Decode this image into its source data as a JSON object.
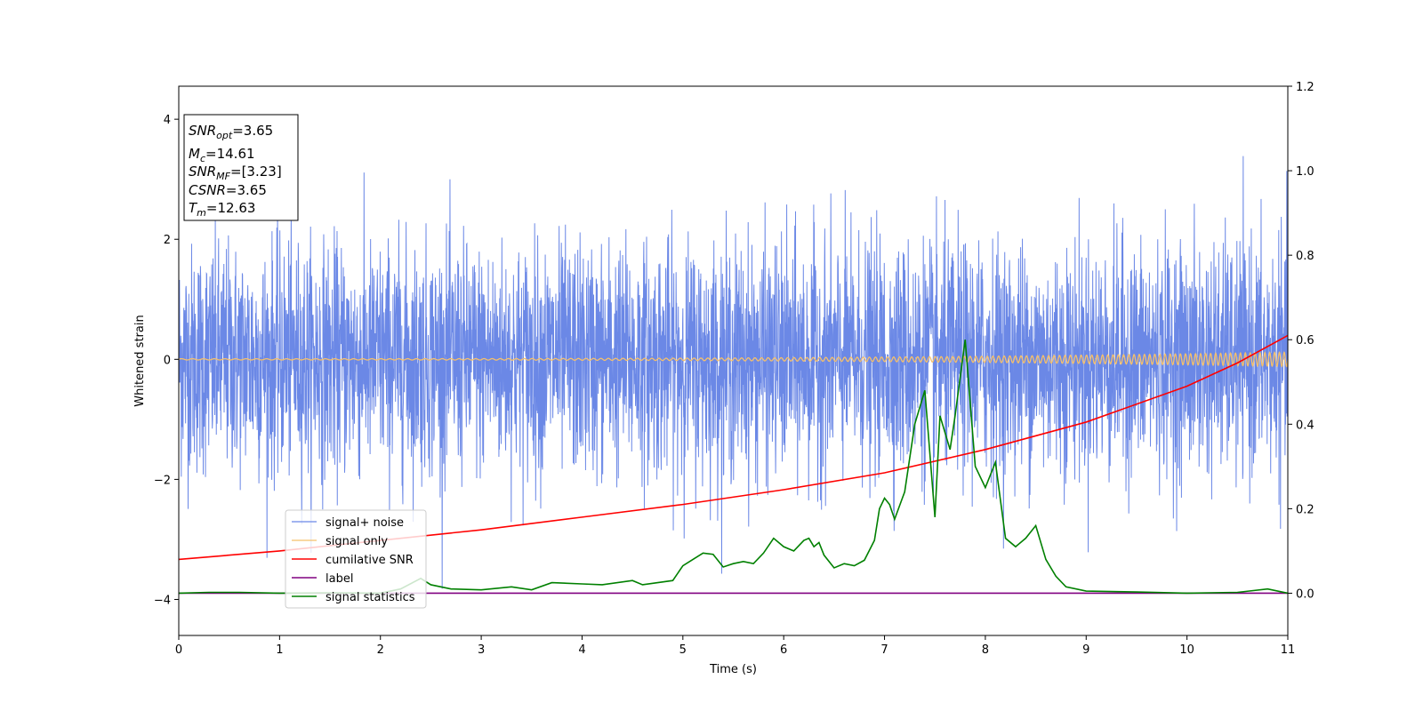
{
  "chart_data": {
    "type": "line",
    "xlabel": "Time (s)",
    "ylabel": "Whitened strain",
    "xlim": [
      0,
      11
    ],
    "ylim": [
      -4.6,
      4.55
    ],
    "y2lim": [
      -0.1,
      1.2
    ],
    "xticks": [
      "0",
      "1",
      "2",
      "3",
      "4",
      "5",
      "6",
      "7",
      "8",
      "9",
      "10",
      "11"
    ],
    "yticks": [
      "4",
      "2",
      "0",
      "−2",
      "−4"
    ],
    "y2ticks": [
      "1.2",
      "1.0",
      "0.8",
      "0.6",
      "0.4",
      "0.2",
      "0.0"
    ],
    "grid": false,
    "legend_position": "lower-left",
    "annotation": {
      "snr_opt": {
        "name": "SNR",
        "sub": "opt",
        "value": "=3.65"
      },
      "mc": {
        "name": "M",
        "sub": "c",
        "value": "=14.61"
      },
      "snr_mf": {
        "name": "SNR",
        "sub": "MF",
        "value": "=[3.23]"
      },
      "csnr": {
        "name": "CSNR",
        "sub": "",
        "value": "=3.65"
      },
      "tm": {
        "name": "T",
        "sub": "m",
        "value": "=12.63"
      }
    },
    "series": [
      {
        "name": "signal+ noise",
        "color": "#6b88e6",
        "axis": "left",
        "description_stats": {
          "band_low": -1.6,
          "band_high": 1.6,
          "max": 4.1,
          "min": -3.95
        }
      },
      {
        "name": "signal only",
        "color": "#f5c06b",
        "axis": "left",
        "amplitude_start": 0.01,
        "amplitude_end": 0.12
      },
      {
        "name": "cumilative SNR",
        "color": "#ff0000",
        "axis": "right",
        "x": [
          0,
          1,
          2,
          3,
          4,
          5,
          6,
          7,
          8,
          9,
          10,
          10.5,
          11
        ],
        "y": [
          0.08,
          0.1,
          0.125,
          0.15,
          0.18,
          0.21,
          0.245,
          0.285,
          0.34,
          0.405,
          0.49,
          0.545,
          0.61
        ]
      },
      {
        "name": "label",
        "color": "#800080",
        "axis": "right",
        "x": [
          0,
          11
        ],
        "y": [
          0,
          0
        ]
      },
      {
        "name": "signal statistics",
        "color": "#008000",
        "axis": "right",
        "x": [
          0,
          0.3,
          0.6,
          1.0,
          1.5,
          2.0,
          2.2,
          2.4,
          2.5,
          2.7,
          3.0,
          3.3,
          3.5,
          3.7,
          4.0,
          4.2,
          4.5,
          4.6,
          4.9,
          5.0,
          5.1,
          5.2,
          5.3,
          5.4,
          5.5,
          5.6,
          5.7,
          5.8,
          5.9,
          6.0,
          6.1,
          6.2,
          6.25,
          6.3,
          6.35,
          6.4,
          6.5,
          6.6,
          6.7,
          6.8,
          6.9,
          6.95,
          7.0,
          7.05,
          7.1,
          7.2,
          7.3,
          7.4,
          7.5,
          7.55,
          7.6,
          7.65,
          7.7,
          7.8,
          7.9,
          8.0,
          8.1,
          8.2,
          8.3,
          8.4,
          8.5,
          8.6,
          8.7,
          8.8,
          9.0,
          9.5,
          10.0,
          10.5,
          10.8,
          11.0
        ],
        "y": [
          0.0,
          0.002,
          0.002,
          0.0,
          0.001,
          0.0,
          0.01,
          0.035,
          0.02,
          0.01,
          0.008,
          0.015,
          0.008,
          0.025,
          0.022,
          0.02,
          0.03,
          0.02,
          0.03,
          0.065,
          0.08,
          0.095,
          0.092,
          0.062,
          0.07,
          0.075,
          0.07,
          0.095,
          0.13,
          0.11,
          0.1,
          0.125,
          0.13,
          0.11,
          0.12,
          0.09,
          0.06,
          0.07,
          0.065,
          0.078,
          0.125,
          0.2,
          0.225,
          0.21,
          0.175,
          0.24,
          0.4,
          0.48,
          0.18,
          0.42,
          0.38,
          0.34,
          0.42,
          0.6,
          0.3,
          0.25,
          0.31,
          0.13,
          0.11,
          0.13,
          0.16,
          0.08,
          0.04,
          0.015,
          0.005,
          0.003,
          0.0,
          0.002,
          0.01,
          0.0
        ]
      }
    ]
  }
}
